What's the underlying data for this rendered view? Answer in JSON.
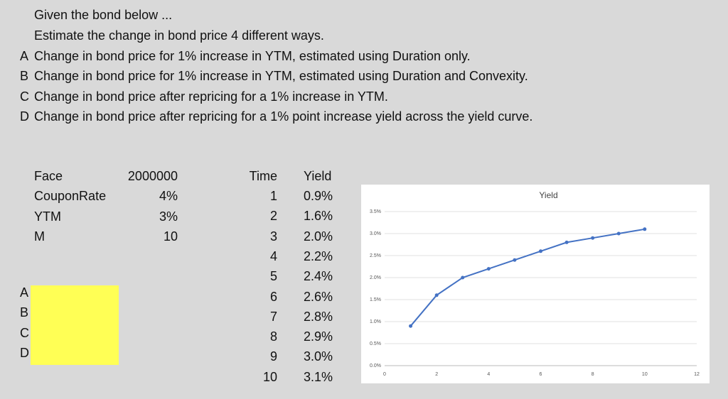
{
  "header": {
    "intro": "Given the bond below ...",
    "task": "Estimate the change in bond price 4 different ways.",
    "items": [
      {
        "letter": "A",
        "text": "Change in bond price for 1% increase in YTM, estimated using Duration only."
      },
      {
        "letter": "B",
        "text": "Change in bond price for 1% increase in YTM, estimated using Duration and Convexity."
      },
      {
        "letter": "C",
        "text": "Change in bond price after repricing for a 1% increase in YTM."
      },
      {
        "letter": "D",
        "text": "Change in bond price after repricing for a 1% point increase yield across the yield curve."
      }
    ]
  },
  "params": {
    "rows": [
      [
        "Face",
        "2000000"
      ],
      [
        "CouponRate",
        "4%"
      ],
      [
        "YTM",
        "3%"
      ],
      [
        "M",
        "10"
      ]
    ]
  },
  "yield_table": {
    "columns": [
      "Time",
      "Yield"
    ],
    "rows": [
      [
        "1",
        "0.9%"
      ],
      [
        "2",
        "1.6%"
      ],
      [
        "3",
        "2.0%"
      ],
      [
        "4",
        "2.2%"
      ],
      [
        "5",
        "2.4%"
      ],
      [
        "6",
        "2.6%"
      ],
      [
        "7",
        "2.8%"
      ],
      [
        "8",
        "2.9%"
      ],
      [
        "9",
        "3.0%"
      ],
      [
        "10",
        "3.1%"
      ]
    ]
  },
  "answers": {
    "labels": [
      "A",
      "B",
      "C",
      "D"
    ]
  },
  "chart_data": {
    "type": "line",
    "title": "Yield",
    "x": [
      1,
      2,
      3,
      4,
      5,
      6,
      7,
      8,
      9,
      10
    ],
    "values": [
      0.9,
      1.6,
      2.0,
      2.2,
      2.4,
      2.6,
      2.8,
      2.9,
      3.0,
      3.1
    ],
    "color": "#4472c4",
    "xlim": [
      0,
      12
    ],
    "xticks": [
      0,
      2,
      4,
      6,
      8,
      10,
      12
    ],
    "ylim": [
      0,
      3.5
    ],
    "yticks": [
      {
        "value": 0,
        "label": "0.0%"
      },
      {
        "value": 0.5,
        "label": "0.5%"
      },
      {
        "value": 1,
        "label": "1.0%"
      },
      {
        "value": 1.5,
        "label": "1.5%"
      },
      {
        "value": 2,
        "label": "2.0%"
      },
      {
        "value": 2.5,
        "label": "2.5%"
      },
      {
        "value": 3,
        "label": "3.0%"
      },
      {
        "value": 3.5,
        "label": "3.5%"
      }
    ],
    "grid": true
  }
}
